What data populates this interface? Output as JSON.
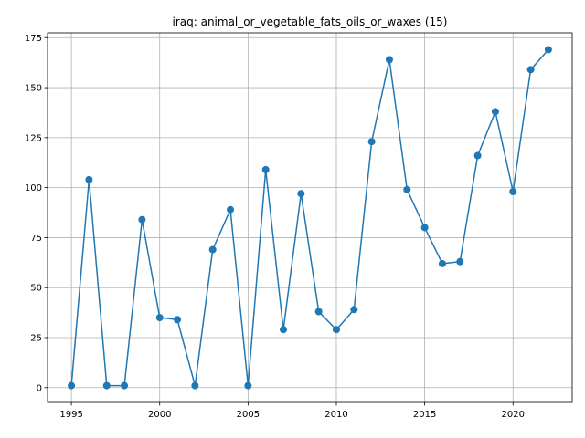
{
  "chart_data": {
    "type": "line",
    "title": "iraq: animal_or_vegetable_fats_oils_or_waxes (15)",
    "x": [
      1995,
      1996,
      1997,
      1998,
      1999,
      2000,
      2001,
      2002,
      2003,
      2004,
      2005,
      2006,
      2007,
      2008,
      2009,
      2010,
      2011,
      2012,
      2013,
      2014,
      2015,
      2016,
      2017,
      2018,
      2019,
      2020,
      2021,
      2022
    ],
    "values": [
      1,
      104,
      1,
      1,
      84,
      35,
      34,
      1,
      69,
      89,
      1,
      109,
      29,
      97,
      38,
      29,
      39,
      123,
      164,
      99,
      80,
      62,
      63,
      116,
      138,
      98,
      159,
      169
    ],
    "color": "#1f77b4",
    "xlim": [
      1993.65,
      2023.35
    ],
    "xticks": [
      1995,
      2000,
      2005,
      2010,
      2015,
      2020
    ],
    "ylim": [
      -7.4,
      177.4
    ],
    "yticks": [
      0,
      25,
      50,
      75,
      100,
      125,
      150,
      175
    ],
    "grid": true
  }
}
